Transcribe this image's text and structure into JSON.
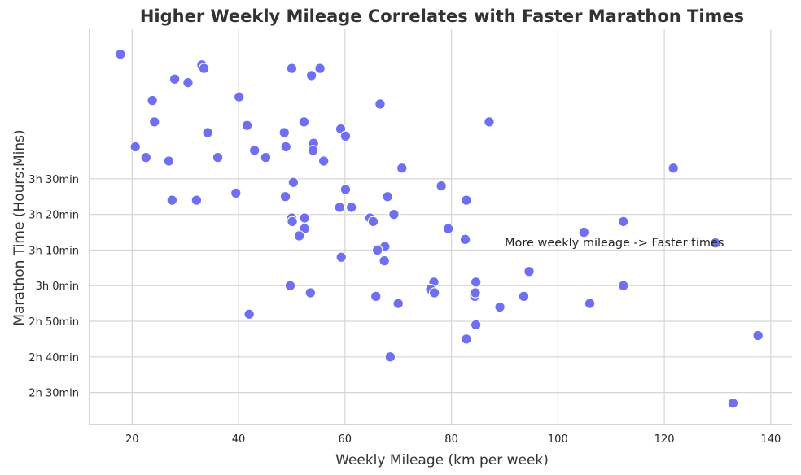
{
  "chart_data": {
    "type": "scatter",
    "title": "Higher Weekly Mileage Correlates with Faster Marathon Times",
    "xlabel": "Weekly Mileage (km per week)",
    "ylabel": "Marathon Time (Hours:Mins)",
    "xlim": [
      12,
      144
    ],
    "ylim": [
      141,
      252
    ],
    "x_ticks": [
      20,
      40,
      60,
      80,
      100,
      120,
      140
    ],
    "x_tick_labels": [
      "20",
      "40",
      "60",
      "80",
      "100",
      "120",
      "140"
    ],
    "y_ticks": [
      150,
      160,
      170,
      180,
      190,
      200,
      210
    ],
    "y_tick_labels": [
      "2h 30min",
      "2h 40min",
      "2h 50min",
      "3h 0min",
      "3h 10min",
      "3h 20min",
      "3h 30min"
    ],
    "grid": true,
    "point_color": "#6f6ff2",
    "annotation": {
      "text": "More weekly mileage -> Faster times",
      "x": 90,
      "y": 191
    },
    "points": [
      [
        17.8,
        245
      ],
      [
        33.1,
        242
      ],
      [
        33.5,
        241
      ],
      [
        28.0,
        238
      ],
      [
        30.5,
        237
      ],
      [
        50.0,
        241
      ],
      [
        53.7,
        239
      ],
      [
        55.3,
        241
      ],
      [
        23.8,
        232
      ],
      [
        40.1,
        233
      ],
      [
        66.6,
        231
      ],
      [
        24.2,
        226
      ],
      [
        41.6,
        225
      ],
      [
        52.3,
        226
      ],
      [
        87.1,
        226
      ],
      [
        34.2,
        223
      ],
      [
        48.6,
        223
      ],
      [
        59.2,
        224
      ],
      [
        60.1,
        222
      ],
      [
        54.1,
        220
      ],
      [
        20.6,
        219
      ],
      [
        43.0,
        218
      ],
      [
        48.9,
        219
      ],
      [
        54.0,
        218
      ],
      [
        22.6,
        216
      ],
      [
        26.9,
        215
      ],
      [
        36.1,
        216
      ],
      [
        45.1,
        216
      ],
      [
        56.0,
        215
      ],
      [
        70.7,
        213
      ],
      [
        121.7,
        213
      ],
      [
        50.3,
        209
      ],
      [
        78.1,
        208
      ],
      [
        39.5,
        206
      ],
      [
        60.1,
        207
      ],
      [
        27.5,
        204
      ],
      [
        32.1,
        204
      ],
      [
        48.8,
        205
      ],
      [
        68.0,
        205
      ],
      [
        82.8,
        204
      ],
      [
        59.0,
        202
      ],
      [
        61.2,
        202
      ],
      [
        69.2,
        200
      ],
      [
        50.0,
        199
      ],
      [
        50.1,
        198
      ],
      [
        52.4,
        199
      ],
      [
        64.7,
        199
      ],
      [
        65.3,
        198
      ],
      [
        52.4,
        196
      ],
      [
        79.4,
        196
      ],
      [
        112.3,
        198
      ],
      [
        51.4,
        194
      ],
      [
        82.6,
        193
      ],
      [
        104.9,
        195
      ],
      [
        129.6,
        192
      ],
      [
        67.5,
        191
      ],
      [
        66.1,
        190
      ],
      [
        59.3,
        188
      ],
      [
        67.4,
        187
      ],
      [
        94.6,
        184
      ],
      [
        49.7,
        180
      ],
      [
        53.5,
        178
      ],
      [
        76.7,
        181
      ],
      [
        84.6,
        181
      ],
      [
        76.1,
        179
      ],
      [
        76.8,
        178
      ],
      [
        84.4,
        177
      ],
      [
        84.5,
        178
      ],
      [
        112.3,
        180
      ],
      [
        65.8,
        177
      ],
      [
        93.6,
        177
      ],
      [
        70.0,
        175
      ],
      [
        89.1,
        174
      ],
      [
        106.0,
        175
      ],
      [
        42.0,
        172
      ],
      [
        84.6,
        169
      ],
      [
        137.6,
        166
      ],
      [
        82.8,
        165
      ],
      [
        68.5,
        160
      ],
      [
        132.9,
        147
      ]
    ]
  }
}
